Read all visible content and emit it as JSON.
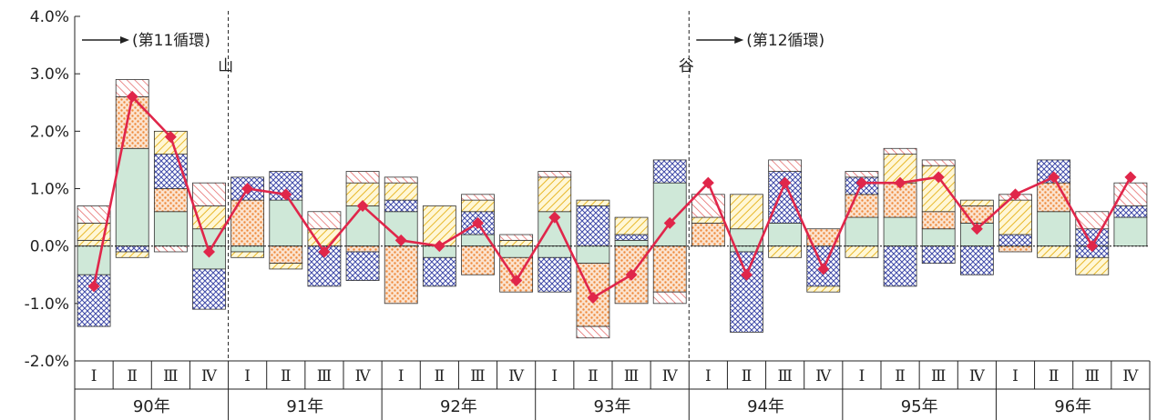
{
  "chart_data": {
    "type": "bar",
    "subtype": "stacked-bar-with-line",
    "y_ticks": [
      "4.0%",
      "3.0%",
      "2.0%",
      "1.0%",
      "0.0%",
      "-1.0%",
      "-2.0%"
    ],
    "ylim": [
      -2.0,
      4.0
    ],
    "quarter_labels": [
      "Ⅰ",
      "Ⅱ",
      "Ⅲ",
      "Ⅳ"
    ],
    "years": [
      "90年",
      "91年",
      "92年",
      "93年",
      "94年",
      "95年",
      "96年"
    ],
    "colors": {
      "green": "#cfe8d8",
      "blue": "#3f4aa8",
      "orange": "#ef8a3c",
      "yellow": "#e8b82a",
      "red": "#e25a5a",
      "line": "#e0264a"
    },
    "components": [
      {
        "key": "green",
        "pattern": "solid-fill"
      },
      {
        "key": "blue",
        "pattern": "crosshatch"
      },
      {
        "key": "orange",
        "pattern": "dots"
      },
      {
        "key": "yellow",
        "pattern": "diagonal-lines"
      },
      {
        "key": "red",
        "pattern": "diagonal-lines-reverse"
      }
    ],
    "bars": [
      {
        "pos": [
          [
            "yellow",
            0.1
          ],
          [
            "yellow",
            0.3
          ],
          [
            "red",
            0.3
          ]
        ],
        "neg": [
          [
            "green",
            -0.5
          ],
          [
            "blue",
            -0.9
          ]
        ]
      },
      {
        "pos": [
          [
            "green",
            1.7
          ],
          [
            "orange",
            0.9
          ],
          [
            "red",
            0.3
          ]
        ],
        "neg": [
          [
            "blue",
            -0.1
          ],
          [
            "yellow",
            -0.1
          ]
        ]
      },
      {
        "pos": [
          [
            "green",
            0.6
          ],
          [
            "orange",
            0.4
          ],
          [
            "blue",
            0.6
          ],
          [
            "yellow",
            0.4
          ]
        ],
        "neg": [
          [
            "red",
            -0.1
          ]
        ]
      },
      {
        "pos": [
          [
            "green",
            0.3
          ],
          [
            "yellow",
            0.4
          ],
          [
            "red",
            0.4
          ]
        ],
        "neg": [
          [
            "green",
            -0.4
          ],
          [
            "blue",
            -0.7
          ]
        ]
      },
      {
        "pos": [
          [
            "orange",
            0.8
          ],
          [
            "blue",
            0.4
          ]
        ],
        "neg": [
          [
            "green",
            -0.1
          ],
          [
            "yellow",
            -0.1
          ]
        ]
      },
      {
        "pos": [
          [
            "green",
            0.8
          ],
          [
            "blue",
            0.5
          ]
        ],
        "neg": [
          [
            "orange",
            -0.3
          ],
          [
            "yellow",
            -0.1
          ]
        ]
      },
      {
        "pos": [
          [
            "yellow",
            0.3
          ],
          [
            "red",
            0.3
          ]
        ],
        "neg": [
          [
            "blue",
            -0.7
          ]
        ]
      },
      {
        "pos": [
          [
            "green",
            0.7
          ],
          [
            "yellow",
            0.4
          ],
          [
            "red",
            0.2
          ]
        ],
        "neg": [
          [
            "orange",
            -0.1
          ],
          [
            "blue",
            -0.5
          ]
        ]
      },
      {
        "pos": [
          [
            "green",
            0.6
          ],
          [
            "blue",
            0.2
          ],
          [
            "yellow",
            0.3
          ],
          [
            "red",
            0.1
          ]
        ],
        "neg": [
          [
            "orange",
            -1.0
          ]
        ]
      },
      {
        "pos": [
          [
            "yellow",
            0.7
          ]
        ],
        "neg": [
          [
            "green",
            -0.2
          ],
          [
            "blue",
            -0.5
          ]
        ]
      },
      {
        "pos": [
          [
            "green",
            0.2
          ],
          [
            "blue",
            0.4
          ],
          [
            "yellow",
            0.2
          ],
          [
            "red",
            0.1
          ]
        ],
        "neg": [
          [
            "orange",
            -0.5
          ]
        ]
      },
      {
        "pos": [
          [
            "yellow",
            0.1
          ],
          [
            "red",
            0.1
          ]
        ],
        "neg": [
          [
            "green",
            -0.2
          ],
          [
            "orange",
            -0.6
          ]
        ]
      },
      {
        "pos": [
          [
            "green",
            0.6
          ],
          [
            "yellow",
            0.6
          ],
          [
            "red",
            0.1
          ]
        ],
        "neg": [
          [
            "green",
            -0.2
          ],
          [
            "blue",
            -0.6
          ]
        ]
      },
      {
        "pos": [
          [
            "blue",
            0.7
          ],
          [
            "yellow",
            0.1
          ]
        ],
        "neg": [
          [
            "green",
            -0.3
          ],
          [
            "orange",
            -1.1
          ],
          [
            "red",
            -0.2
          ]
        ]
      },
      {
        "pos": [
          [
            "green",
            0.1
          ],
          [
            "blue",
            0.1
          ],
          [
            "yellow",
            0.3
          ]
        ],
        "neg": [
          [
            "orange",
            -1.0
          ]
        ]
      },
      {
        "pos": [
          [
            "green",
            1.1
          ],
          [
            "blue",
            0.4
          ]
        ],
        "neg": [
          [
            "orange",
            -0.8
          ],
          [
            "red",
            -0.2
          ]
        ]
      },
      {
        "pos": [
          [
            "orange",
            0.4
          ],
          [
            "yellow",
            0.1
          ],
          [
            "red",
            0.4
          ]
        ],
        "neg": []
      },
      {
        "pos": [
          [
            "green",
            0.3
          ],
          [
            "yellow",
            0.6
          ]
        ],
        "neg": [
          [
            "green",
            -0.1
          ],
          [
            "blue",
            -1.4
          ]
        ]
      },
      {
        "pos": [
          [
            "green",
            0.4
          ],
          [
            "blue",
            0.9
          ],
          [
            "red",
            0.2
          ]
        ],
        "neg": [
          [
            "yellow",
            -0.2
          ]
        ]
      },
      {
        "pos": [
          [
            "orange",
            0.3
          ]
        ],
        "neg": [
          [
            "blue",
            -0.7
          ],
          [
            "yellow",
            -0.1
          ]
        ]
      },
      {
        "pos": [
          [
            "green",
            0.5
          ],
          [
            "orange",
            0.4
          ],
          [
            "blue",
            0.3
          ],
          [
            "red",
            0.1
          ]
        ],
        "neg": [
          [
            "yellow",
            -0.2
          ]
        ]
      },
      {
        "pos": [
          [
            "green",
            0.5
          ],
          [
            "orange",
            0.6
          ],
          [
            "yellow",
            0.5
          ],
          [
            "red",
            0.1
          ]
        ],
        "neg": [
          [
            "blue",
            -0.7
          ]
        ]
      },
      {
        "pos": [
          [
            "green",
            0.3
          ],
          [
            "orange",
            0.3
          ],
          [
            "yellow",
            0.8
          ],
          [
            "red",
            0.1
          ]
        ],
        "neg": [
          [
            "blue",
            -0.3
          ]
        ]
      },
      {
        "pos": [
          [
            "green",
            0.4
          ],
          [
            "orange",
            0.3
          ],
          [
            "yellow",
            0.1
          ]
        ],
        "neg": [
          [
            "blue",
            -0.5
          ]
        ]
      },
      {
        "pos": [
          [
            "blue",
            0.2
          ],
          [
            "yellow",
            0.6
          ],
          [
            "red",
            0.1
          ]
        ],
        "neg": [
          [
            "orange",
            -0.1
          ]
        ]
      },
      {
        "pos": [
          [
            "green",
            0.6
          ],
          [
            "orange",
            0.5
          ],
          [
            "blue",
            0.4
          ]
        ],
        "neg": [
          [
            "yellow",
            -0.2
          ]
        ]
      },
      {
        "pos": [
          [
            "blue",
            0.3
          ],
          [
            "red",
            0.3
          ]
        ],
        "neg": [
          [
            "blue",
            -0.2
          ],
          [
            "yellow",
            -0.3
          ]
        ]
      },
      {
        "pos": [
          [
            "green",
            0.5
          ],
          [
            "blue",
            0.2
          ],
          [
            "red",
            0.4
          ]
        ],
        "neg": []
      }
    ],
    "line_values": [
      -0.7,
      2.6,
      1.9,
      -0.1,
      1.0,
      0.9,
      -0.1,
      0.7,
      0.1,
      0.0,
      0.4,
      -0.6,
      0.5,
      -0.9,
      -0.5,
      0.4,
      1.1,
      -0.5,
      1.1,
      -0.4,
      1.1,
      1.1,
      1.2,
      0.3,
      0.9,
      1.2,
      0.0,
      1.2
    ],
    "markers": [
      {
        "label": "山",
        "after_bar": 4
      },
      {
        "label": "谷",
        "after_bar": 16
      }
    ],
    "cycles": [
      {
        "label": "(第11循環)",
        "start_bar": 0
      },
      {
        "label": "(第12循環)",
        "start_bar": 16
      }
    ]
  }
}
